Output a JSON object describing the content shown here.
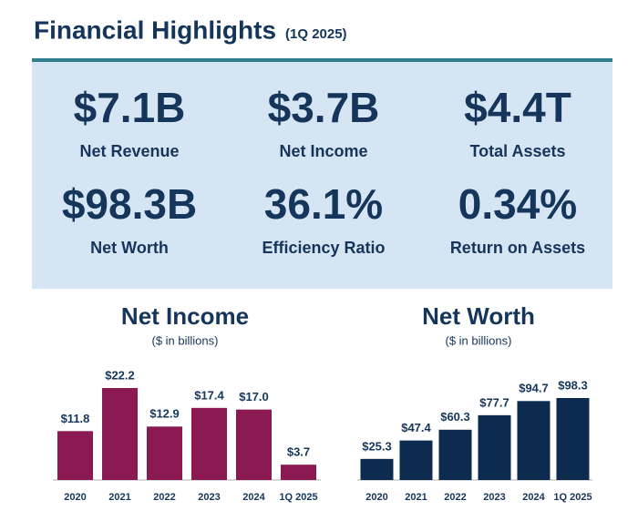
{
  "header": {
    "title": "Financial Highlights",
    "subtitle": "(1Q 2025)"
  },
  "kpis": [
    {
      "value": "$7.1B",
      "label": "Net Revenue"
    },
    {
      "value": "$3.7B",
      "label": "Net Income"
    },
    {
      "value": "$4.4T",
      "label": "Total Assets"
    },
    {
      "value": "$98.3B",
      "label": "Net Worth"
    },
    {
      "value": "36.1%",
      "label": "Efficiency Ratio"
    },
    {
      "value": "0.34%",
      "label": "Return on Assets"
    }
  ],
  "chart_data": [
    {
      "type": "bar",
      "title": "Net Income",
      "subtitle": "($ in billions)",
      "categories": [
        "2020",
        "2021",
        "2022",
        "2023",
        "2024",
        "1Q 2025"
      ],
      "values": [
        11.8,
        22.2,
        12.9,
        17.4,
        17.0,
        3.7
      ],
      "value_labels": [
        "$11.8",
        "$22.2",
        "$12.9",
        "$17.4",
        "$17.0",
        "$3.7"
      ],
      "color": "#8b1a52"
    },
    {
      "type": "bar",
      "title": "Net Worth",
      "subtitle": "($ in billions)",
      "categories": [
        "2020",
        "2021",
        "2022",
        "2023",
        "2024",
        "1Q 2025"
      ],
      "values": [
        25.3,
        47.4,
        60.3,
        77.7,
        94.7,
        98.3
      ],
      "value_labels": [
        "$25.3",
        "$47.4",
        "$60.3",
        "$77.7",
        "$94.7",
        "$98.3"
      ],
      "color": "#0d2b4e"
    }
  ]
}
